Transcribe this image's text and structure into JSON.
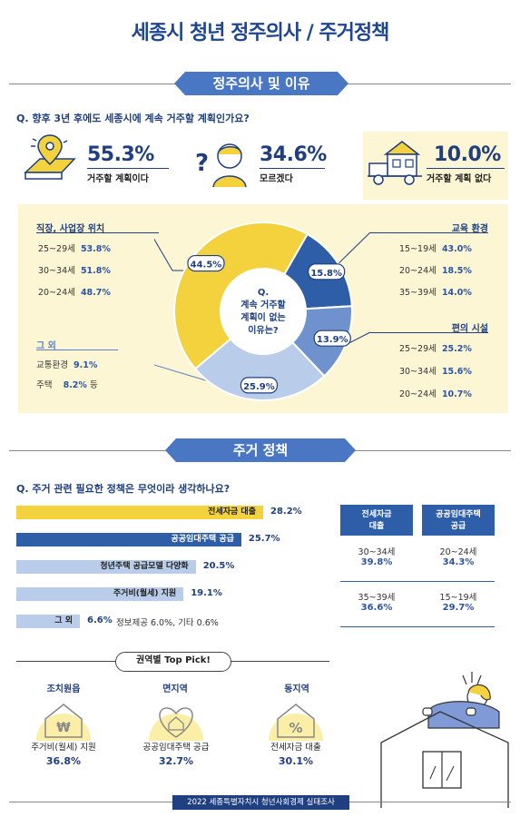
{
  "title": "세종시 청년 정주의사 / 주거정책",
  "section1": {
    "banner": "정주의사 및 이유",
    "question": "Q. 향후 3년 후에도 세종시에 계속 거주할 계획인가요?",
    "stats": [
      {
        "value": "55.3%",
        "label": "거주할 계획이다",
        "icon": "map-pin-icon"
      },
      {
        "value": "34.6%",
        "label": "모르겠다",
        "icon": "question-person-icon"
      },
      {
        "value": "10.0%",
        "label": "거주할 계획 없다",
        "icon": "moving-truck-icon"
      }
    ],
    "pie_center": [
      "Q.",
      "계속 거주할",
      "계획이 없는",
      "이유는?"
    ],
    "left_groups": [
      {
        "title": "직장, 사업장 위치",
        "rows": [
          {
            "age": "25~29세",
            "pct": "53.8%"
          },
          {
            "age": "30~34세",
            "pct": "51.8%"
          },
          {
            "age": "20~24세",
            "pct": "48.7%"
          }
        ]
      },
      {
        "title": "그 외",
        "rows": [
          {
            "age": "교통환경",
            "pct": "9.1%",
            "suffix": ""
          },
          {
            "age": "주택",
            "pct": "8.2%",
            "suffix": "등"
          }
        ]
      }
    ],
    "right_groups": [
      {
        "title": "교육 환경",
        "rows": [
          {
            "age": "15~19세",
            "pct": "43.0%"
          },
          {
            "age": "20~24세",
            "pct": "18.5%"
          },
          {
            "age": "35~39세",
            "pct": "14.0%"
          }
        ]
      },
      {
        "title": "편의 시설",
        "rows": [
          {
            "age": "25~29세",
            "pct": "25.2%"
          },
          {
            "age": "30~34세",
            "pct": "15.6%"
          },
          {
            "age": "20~24세",
            "pct": "10.7%"
          }
        ]
      }
    ]
  },
  "chart_data": {
    "type": "pie",
    "categories": [
      "직장, 사업장 위치",
      "교육 환경",
      "편의 시설",
      "그 외"
    ],
    "values": [
      44.5,
      15.8,
      13.9,
      25.9
    ],
    "labels": [
      "44.5%",
      "15.8%",
      "13.9%",
      "25.9%"
    ],
    "colors": [
      "#f3d23e",
      "#2f5ea8",
      "#6f92cf",
      "#b9cdea"
    ]
  },
  "section2": {
    "banner": "주거 정책",
    "question": "Q. 주거 관련 필요한 정책은 무엇이라 생각하나요?",
    "bars": [
      {
        "label": "전세자금 대출",
        "value": 28.2,
        "pct": "28.2%",
        "color": "#f3d23e"
      },
      {
        "label": "공공임대주택 공급",
        "value": 25.7,
        "pct": "25.7%",
        "color": "#2f5ea8"
      },
      {
        "label": "청년주택 공급모델 다양화",
        "value": 20.5,
        "pct": "20.5%",
        "color": "#b9cdea"
      },
      {
        "label": "주거비(월세) 지원",
        "value": 19.1,
        "pct": "19.1%",
        "color": "#b9cdea"
      },
      {
        "label": "그 외",
        "value": 6.6,
        "pct": "6.6%",
        "color": "#b9cdea"
      }
    ],
    "other_note": "정보제공 6.0%, 기타 0.6%",
    "table": {
      "headers": [
        "전세자금\n대출",
        "공공임대주택\n공급"
      ],
      "rows": [
        [
          {
            "age": "30~34세",
            "pct": "39.8%"
          },
          {
            "age": "20~24세",
            "pct": "34.3%"
          }
        ],
        [
          {
            "age": "35~39세",
            "pct": "36.6%"
          },
          {
            "age": "15~19세",
            "pct": "29.7%"
          }
        ]
      ]
    },
    "top_pick": "권역별 Top Pick!",
    "regions": [
      {
        "name": "조치원읍",
        "label": "주거비(월세) 지원",
        "pct": "36.8%",
        "icon": "won-house-icon"
      },
      {
        "name": "면지역",
        "label": "공공임대주택 공급",
        "pct": "32.7%",
        "icon": "heart-house-icon"
      },
      {
        "name": "동지역",
        "label": "전세자금 대출",
        "pct": "30.1%",
        "icon": "percent-house-icon"
      }
    ]
  },
  "footer": "2022 세종특별자치시 청년사회경제 실태조사"
}
